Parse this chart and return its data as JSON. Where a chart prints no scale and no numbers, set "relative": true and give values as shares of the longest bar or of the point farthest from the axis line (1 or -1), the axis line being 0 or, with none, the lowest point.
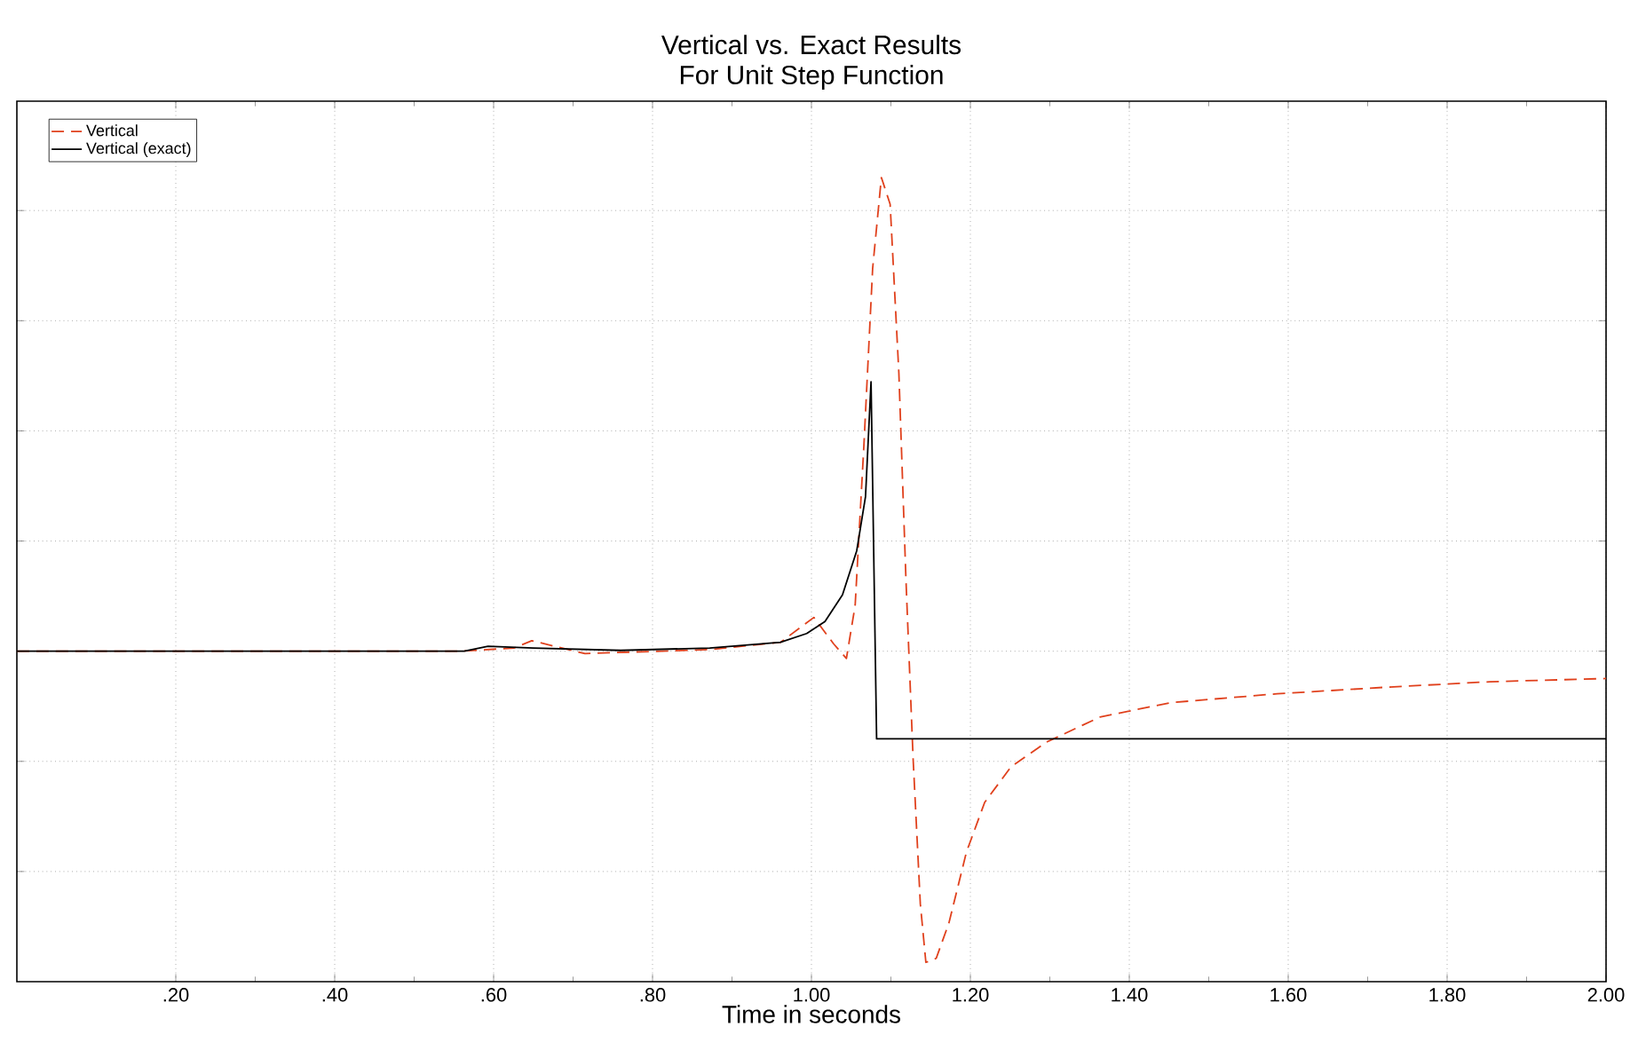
{
  "chart_data": {
    "type": "line",
    "title": "Vertical vs. Exact Results",
    "subtitle": "For Unit Step Function",
    "xlabel": "Time in seconds",
    "relative": true,
    "xlim": [
      0,
      2
    ],
    "xticks": [
      {
        "value": 0.2,
        "label": ".20"
      },
      {
        "value": 0.4,
        "label": ".40"
      },
      {
        "value": 0.6,
        "label": ".60"
      },
      {
        "value": 0.8,
        "label": ".80"
      },
      {
        "value": 1.0,
        "label": "1.00"
      },
      {
        "value": 1.2,
        "label": "1.20"
      },
      {
        "value": 1.4,
        "label": "1.40"
      },
      {
        "value": 1.6,
        "label": "1.60"
      },
      {
        "value": 1.8,
        "label": "1.80"
      },
      {
        "value": 2.0,
        "label": "2.00"
      }
    ],
    "grid": true,
    "legend": "top left",
    "series": [
      {
        "name": "Vertical",
        "color": "#e0401c",
        "line_style": "dashed",
        "x": [
          0,
          0.559,
          0.626,
          0.648,
          0.715,
          0.872,
          0.961,
          1.003,
          1.028,
          1.044,
          1.055,
          1.066,
          1.077,
          1.088,
          1.099,
          1.11,
          1.119,
          1.128,
          1.137,
          1.144,
          1.157,
          1.173,
          1.195,
          1.218,
          1.251,
          1.296,
          1.363,
          1.452,
          1.586,
          1.72,
          1.854,
          2.0
        ],
        "values": [
          0.411,
          0.411,
          0.415,
          0.424,
          0.408,
          0.413,
          0.422,
          0.453,
          0.42,
          0.402,
          0.468,
          0.667,
          0.887,
          1.0,
          0.967,
          0.757,
          0.498,
          0.276,
          0.097,
          0.024,
          0.029,
          0.073,
          0.161,
          0.223,
          0.267,
          0.298,
          0.329,
          0.347,
          0.358,
          0.366,
          0.373,
          0.377
        ]
      },
      {
        "name": "Vertical (exact)",
        "color": "#000000",
        "line_style": "solid",
        "x": [
          0,
          0.563,
          0.593,
          0.65,
          0.76,
          0.872,
          0.961,
          0.994,
          1.017,
          1.039,
          1.057,
          1.068,
          1.075,
          1.082,
          2.0
        ],
        "values": [
          0.411,
          0.411,
          0.417,
          0.415,
          0.412,
          0.415,
          0.422,
          0.433,
          0.448,
          0.481,
          0.536,
          0.603,
          0.746,
          0.302,
          0.302
        ]
      }
    ]
  }
}
